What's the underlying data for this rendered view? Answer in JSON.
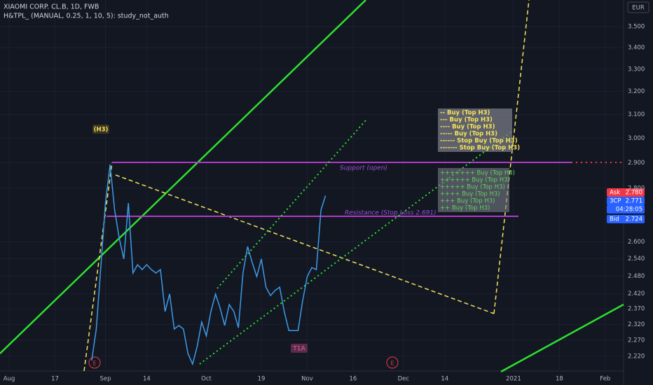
{
  "header": {
    "symbol": "XIAOMI CORP. CL.B, 1D, FWB",
    "study": "H&TPL_ (MANUAL, 0.25, 1, 10, 5): study_not_auth",
    "currency": "EUR"
  },
  "annotations": {
    "h3": "(H3)",
    "t1a": "T1A",
    "e1": "E",
    "e2": "E",
    "support": "Support (open)",
    "resistance": "Resistance (Stop Loss 2.691)",
    "box_top": [
      "-- Buy (Top H3)",
      "--- Buy (Top H3)",
      "---- Buy (Top H3)",
      "----- Buy (Top H3)",
      "------ Stop Buy (Top H3)",
      "------- Stop Buy (Top H3)"
    ],
    "box_bottom": [
      "+++++++ Buy (Top H3)",
      "++++++ Buy (Top H3)",
      "+++++ Buy (Top H3)",
      "++++ Buy (Top H3)",
      "+++ Buy (Top H3)",
      "++ Buy (Top H3)"
    ]
  },
  "badges": [
    {
      "name": "Ask",
      "price": "2.780",
      "color": "#f23645"
    },
    {
      "name": "3CP",
      "price": "2.771",
      "color": "#2962ff"
    },
    {
      "name": "",
      "price": "04:28:05",
      "color": "#2962ff"
    },
    {
      "name": "Bid",
      "price": "2.724",
      "color": "#2962ff"
    }
  ],
  "chart_data": {
    "type": "line",
    "color": "#3d9be9",
    "log_scale": true,
    "grid": true,
    "x": [
      "2020-08-27",
      "2020-08-28",
      "2020-08-31",
      "2020-09-01",
      "2020-09-02",
      "2020-09-03",
      "2020-09-04",
      "2020-09-07",
      "2020-09-08",
      "2020-09-09",
      "2020-09-10",
      "2020-09-11",
      "2020-09-14",
      "2020-09-15",
      "2020-09-16",
      "2020-09-17",
      "2020-09-18",
      "2020-09-21",
      "2020-09-22",
      "2020-09-23",
      "2020-09-24",
      "2020-09-25",
      "2020-09-28",
      "2020-09-29",
      "2020-09-30",
      "2020-10-01",
      "2020-10-02",
      "2020-10-05",
      "2020-10-06",
      "2020-10-07",
      "2020-10-08",
      "2020-10-09",
      "2020-10-12",
      "2020-10-13",
      "2020-10-14",
      "2020-10-15",
      "2020-10-16",
      "2020-10-19",
      "2020-10-20",
      "2020-10-21",
      "2020-10-22",
      "2020-10-23",
      "2020-10-26",
      "2020-10-27",
      "2020-10-28",
      "2020-10-29",
      "2020-10-30",
      "2020-11-02",
      "2020-11-03",
      "2020-11-04",
      "2020-11-05",
      "2020-11-06"
    ],
    "values": [
      2.207,
      2.305,
      2.514,
      2.743,
      2.893,
      2.717,
      2.614,
      2.539,
      2.743,
      2.49,
      2.519,
      2.502,
      2.519,
      2.502,
      2.49,
      2.502,
      2.361,
      2.419,
      2.305,
      2.316,
      2.305,
      2.228,
      2.196,
      2.25,
      2.327,
      2.283,
      2.361,
      2.419,
      2.373,
      2.316,
      2.384,
      2.361,
      2.309,
      2.49,
      2.583,
      2.527,
      2.478,
      2.539,
      2.442,
      2.414,
      2.431,
      2.442,
      2.361,
      2.3,
      2.3,
      2.3,
      2.396,
      2.478,
      2.509,
      2.502,
      2.717,
      2.771
    ],
    "xlim": [
      "2020-07-30",
      "2021-02-05"
    ],
    "xticks": [
      {
        "value": "2020-08-03",
        "label": "Aug"
      },
      {
        "value": "2020-08-17",
        "label": "17"
      },
      {
        "value": "2020-09-01",
        "label": "Sep"
      },
      {
        "value": "2020-09-14",
        "label": "14"
      },
      {
        "value": "2020-10-01",
        "label": "Oct"
      },
      {
        "value": "2020-10-19",
        "label": "19"
      },
      {
        "value": "2020-11-02",
        "label": "Nov"
      },
      {
        "value": "2020-11-16",
        "label": "16"
      },
      {
        "value": "2020-12-01",
        "label": "Dec"
      },
      {
        "value": "2020-12-14",
        "label": "14"
      },
      {
        "value": "2021-01-04",
        "label": "2021"
      },
      {
        "value": "2021-01-18",
        "label": "18"
      },
      {
        "value": "2021-02-01",
        "label": "Feb"
      }
    ],
    "ylim": [
      2.175,
      3.631
    ],
    "yticks": [
      {
        "value": 3.5,
        "label": "3.500"
      },
      {
        "value": 3.4,
        "label": "3.400"
      },
      {
        "value": 3.3,
        "label": "3.300"
      },
      {
        "value": 3.2,
        "label": "3.200"
      },
      {
        "value": 3.1,
        "label": "3.100"
      },
      {
        "value": 3.0,
        "label": "3.000"
      },
      {
        "value": 2.9,
        "label": "2.900"
      },
      {
        "value": 2.8,
        "label": "2.800"
      },
      {
        "value": 2.6,
        "label": "2.600"
      },
      {
        "value": 2.54,
        "label": "2.540"
      },
      {
        "value": 2.48,
        "label": "2.480"
      },
      {
        "value": 2.42,
        "label": "2.420"
      },
      {
        "value": 2.37,
        "label": "2.370"
      },
      {
        "value": 2.32,
        "label": "2.320"
      },
      {
        "value": 2.27,
        "label": "2.270"
      },
      {
        "value": 2.22,
        "label": "2.220"
      }
    ]
  }
}
